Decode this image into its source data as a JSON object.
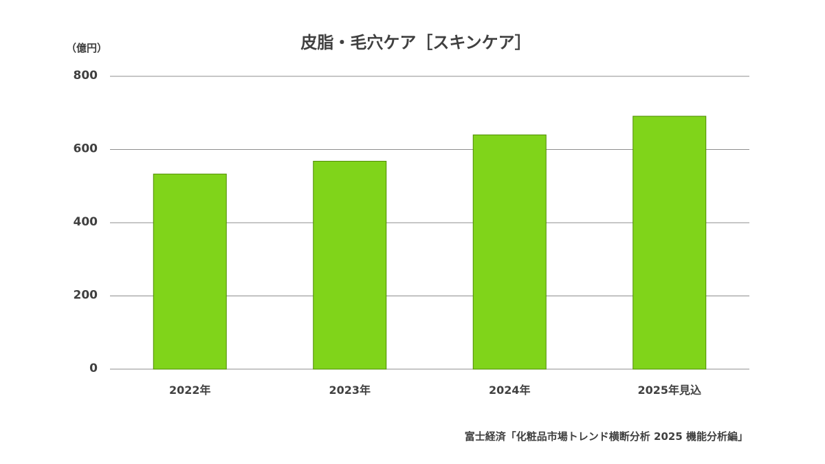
{
  "chart_data": {
    "type": "bar",
    "title": "皮脂・毛穴ケア［スキンケア］",
    "unit_label": "（億円）",
    "categories": [
      "2022年",
      "2023年",
      "2024年",
      "2025年見込"
    ],
    "values": [
      533,
      568,
      640,
      691
    ],
    "ylim": [
      0,
      800
    ],
    "yticks": [
      0,
      200,
      400,
      600,
      800
    ],
    "xlabel": "",
    "ylabel": "",
    "grid": true,
    "legend": "none",
    "bar_color": "#80d41a",
    "source": "富士経済「化粧品市場トレンド横断分析 2025 機能分析編」"
  }
}
